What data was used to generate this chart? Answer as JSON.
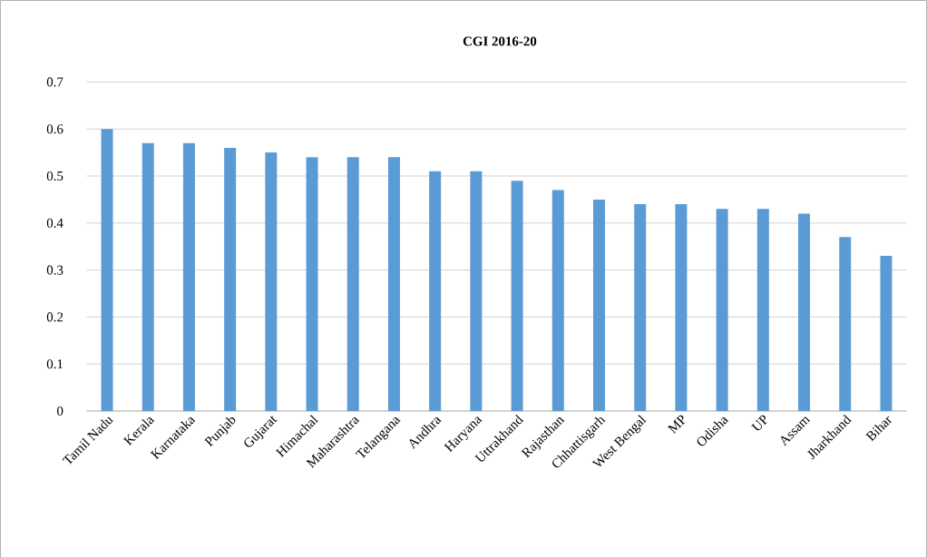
{
  "chart_data": {
    "type": "bar",
    "title": "CGI 2016-20",
    "categories": [
      "Tamil Nadu",
      "Kerala",
      "Karnataka",
      "Punjab",
      "Gujarat",
      "Himachal",
      "Maharashtra",
      "Telangana",
      "Andhra",
      "Haryana",
      "Uttrakhand",
      "Rajasthan",
      "Chhattisgarh",
      "West Bengal",
      "MP",
      "Odisha",
      "UP",
      "Assam",
      "Jharkhand",
      "Bihar"
    ],
    "values": [
      0.6,
      0.57,
      0.57,
      0.56,
      0.55,
      0.54,
      0.54,
      0.54,
      0.51,
      0.51,
      0.49,
      0.47,
      0.45,
      0.44,
      0.44,
      0.43,
      0.43,
      0.42,
      0.37,
      0.33
    ],
    "color": "#5b9bd5",
    "ylim": [
      0,
      0.7
    ],
    "yticks": [
      0,
      0.1,
      0.2,
      0.3,
      0.4,
      0.5,
      0.6,
      0.7
    ],
    "grid": "y"
  }
}
